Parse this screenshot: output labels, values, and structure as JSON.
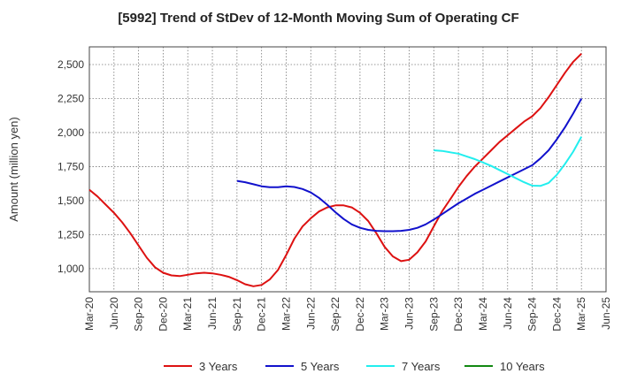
{
  "chart_data": {
    "type": "line",
    "title": "[5992]  Trend of StDev of 12-Month Moving Sum of Operating CF",
    "xlabel": "",
    "ylabel": "Amount (million yen)",
    "x_tick_labels": [
      "Mar-20",
      "Jun-20",
      "Sep-20",
      "Dec-20",
      "Mar-21",
      "Jun-21",
      "Sep-21",
      "Dec-21",
      "Mar-22",
      "Jun-22",
      "Sep-22",
      "Dec-22",
      "Mar-23",
      "Jun-23",
      "Sep-23",
      "Dec-23",
      "Mar-24",
      "Jun-24",
      "Sep-24",
      "Dec-24",
      "Mar-25",
      "Jun-25"
    ],
    "y_ticks": [
      1000,
      1250,
      1500,
      1750,
      2000,
      2250,
      2500
    ],
    "y_tick_labels": [
      "1,000",
      "1,250",
      "1,500",
      "1,750",
      "2,000",
      "2,250",
      "2,500"
    ],
    "ylim": [
      830,
      2630
    ],
    "grid": true,
    "legend_position": "bottom",
    "series": [
      {
        "name": "3 Years",
        "color": "#dd1111",
        "points": [
          [
            "Mar-20",
            1580
          ],
          [
            "Apr-20",
            1530
          ],
          [
            "May-20",
            1470
          ],
          [
            "Jun-20",
            1410
          ],
          [
            "Jul-20",
            1340
          ],
          [
            "Aug-20",
            1260
          ],
          [
            "Sep-20",
            1170
          ],
          [
            "Oct-20",
            1080
          ],
          [
            "Nov-20",
            1010
          ],
          [
            "Dec-20",
            970
          ],
          [
            "Jan-21",
            950
          ],
          [
            "Feb-21",
            945
          ],
          [
            "Mar-21",
            955
          ],
          [
            "Apr-21",
            965
          ],
          [
            "May-21",
            970
          ],
          [
            "Jun-21",
            965
          ],
          [
            "Jul-21",
            955
          ],
          [
            "Aug-21",
            940
          ],
          [
            "Sep-21",
            915
          ],
          [
            "Oct-21",
            885
          ],
          [
            "Nov-21",
            870
          ],
          [
            "Dec-21",
            880
          ],
          [
            "Jan-22",
            920
          ],
          [
            "Feb-22",
            990
          ],
          [
            "Mar-22",
            1100
          ],
          [
            "Apr-22",
            1220
          ],
          [
            "May-22",
            1310
          ],
          [
            "Jun-22",
            1370
          ],
          [
            "Jul-22",
            1420
          ],
          [
            "Aug-22",
            1450
          ],
          [
            "Sep-22",
            1465
          ],
          [
            "Oct-22",
            1465
          ],
          [
            "Nov-22",
            1450
          ],
          [
            "Dec-22",
            1410
          ],
          [
            "Jan-23",
            1350
          ],
          [
            "Feb-23",
            1260
          ],
          [
            "Mar-23",
            1160
          ],
          [
            "Apr-23",
            1090
          ],
          [
            "May-23",
            1055
          ],
          [
            "Jun-23",
            1065
          ],
          [
            "Jul-23",
            1120
          ],
          [
            "Aug-23",
            1200
          ],
          [
            "Sep-23",
            1310
          ],
          [
            "Oct-23",
            1420
          ],
          [
            "Nov-23",
            1510
          ],
          [
            "Dec-23",
            1600
          ],
          [
            "Jan-24",
            1680
          ],
          [
            "Feb-24",
            1750
          ],
          [
            "Mar-24",
            1810
          ],
          [
            "Apr-24",
            1870
          ],
          [
            "May-24",
            1930
          ],
          [
            "Jun-24",
            1980
          ],
          [
            "Jul-24",
            2030
          ],
          [
            "Aug-24",
            2080
          ],
          [
            "Sep-24",
            2120
          ],
          [
            "Oct-24",
            2180
          ],
          [
            "Nov-24",
            2260
          ],
          [
            "Dec-24",
            2350
          ],
          [
            "Jan-25",
            2440
          ],
          [
            "Feb-25",
            2520
          ],
          [
            "Mar-25",
            2580
          ]
        ]
      },
      {
        "name": "5 Years",
        "color": "#1111cc",
        "points": [
          [
            "Sep-21",
            1645
          ],
          [
            "Oct-21",
            1635
          ],
          [
            "Nov-21",
            1620
          ],
          [
            "Dec-21",
            1605
          ],
          [
            "Jan-22",
            1598
          ],
          [
            "Feb-22",
            1598
          ],
          [
            "Mar-22",
            1605
          ],
          [
            "Apr-22",
            1600
          ],
          [
            "May-22",
            1585
          ],
          [
            "Jun-22",
            1560
          ],
          [
            "Jul-22",
            1520
          ],
          [
            "Aug-22",
            1470
          ],
          [
            "Sep-22",
            1415
          ],
          [
            "Oct-22",
            1365
          ],
          [
            "Nov-22",
            1325
          ],
          [
            "Dec-22",
            1300
          ],
          [
            "Jan-23",
            1285
          ],
          [
            "Feb-23",
            1278
          ],
          [
            "Mar-23",
            1275
          ],
          [
            "Apr-23",
            1275
          ],
          [
            "May-23",
            1278
          ],
          [
            "Jun-23",
            1285
          ],
          [
            "Jul-23",
            1300
          ],
          [
            "Aug-23",
            1325
          ],
          [
            "Sep-23",
            1360
          ],
          [
            "Oct-23",
            1400
          ],
          [
            "Nov-23",
            1440
          ],
          [
            "Dec-23",
            1480
          ],
          [
            "Jan-24",
            1515
          ],
          [
            "Feb-24",
            1550
          ],
          [
            "Mar-24",
            1580
          ],
          [
            "Apr-24",
            1610
          ],
          [
            "May-24",
            1640
          ],
          [
            "Jun-24",
            1670
          ],
          [
            "Jul-24",
            1700
          ],
          [
            "Aug-24",
            1730
          ],
          [
            "Sep-24",
            1760
          ],
          [
            "Oct-24",
            1810
          ],
          [
            "Nov-24",
            1870
          ],
          [
            "Dec-24",
            1950
          ],
          [
            "Jan-25",
            2040
          ],
          [
            "Feb-25",
            2140
          ],
          [
            "Mar-25",
            2250
          ]
        ]
      },
      {
        "name": "7 Years",
        "color": "#22eeee",
        "points": [
          [
            "Sep-23",
            1870
          ],
          [
            "Oct-23",
            1865
          ],
          [
            "Nov-23",
            1855
          ],
          [
            "Dec-23",
            1845
          ],
          [
            "Jan-24",
            1825
          ],
          [
            "Feb-24",
            1805
          ],
          [
            "Mar-24",
            1780
          ],
          [
            "Apr-24",
            1755
          ],
          [
            "May-24",
            1725
          ],
          [
            "Jun-24",
            1695
          ],
          [
            "Jul-24",
            1665
          ],
          [
            "Aug-24",
            1635
          ],
          [
            "Sep-24",
            1610
          ],
          [
            "Oct-24",
            1608
          ],
          [
            "Nov-24",
            1630
          ],
          [
            "Dec-24",
            1690
          ],
          [
            "Jan-25",
            1770
          ],
          [
            "Feb-25",
            1860
          ],
          [
            "Mar-25",
            1970
          ]
        ]
      },
      {
        "name": "10 Years",
        "color": "#118811",
        "points": []
      }
    ]
  }
}
